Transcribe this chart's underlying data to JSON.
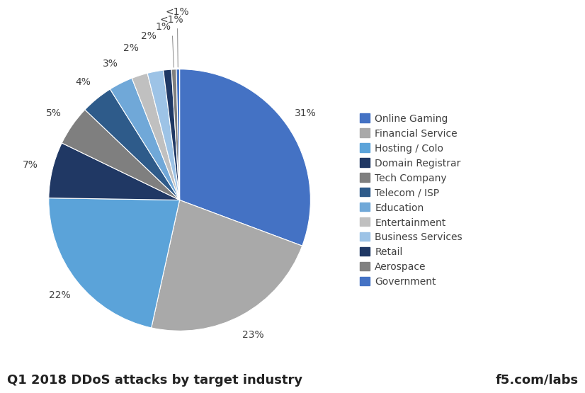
{
  "title": "Q1 2018 DDoS attacks by target industry",
  "watermark": "f5.com/labs",
  "labels": [
    "Online Gaming",
    "Financial Service",
    "Hosting / Colo",
    "Domain Registrar",
    "Tech Company",
    "Telecom / ISP",
    "Education",
    "Entertainment",
    "Business Services",
    "Retail",
    "Aerospace",
    "Government"
  ],
  "values": [
    31,
    23,
    22,
    7,
    5,
    4,
    3,
    2,
    2,
    1,
    0.6,
    0.4
  ],
  "display_labels": [
    "31%",
    "23%",
    "22%",
    "7%",
    "5%",
    "4%",
    "3%",
    "2%",
    "2%",
    "1%",
    "<1%",
    "<1%"
  ],
  "colors": [
    "#4472C4",
    "#A9A9A9",
    "#5BA3D9",
    "#203864",
    "#7F7F7F",
    "#2E5B8A",
    "#70A8D8",
    "#C0C0C0",
    "#9DC3E6",
    "#1F3864",
    "#808080",
    "#4472C4"
  ],
  "background_color": "#ffffff",
  "title_fontsize": 13,
  "legend_fontsize": 10,
  "pct_fontsize": 10
}
